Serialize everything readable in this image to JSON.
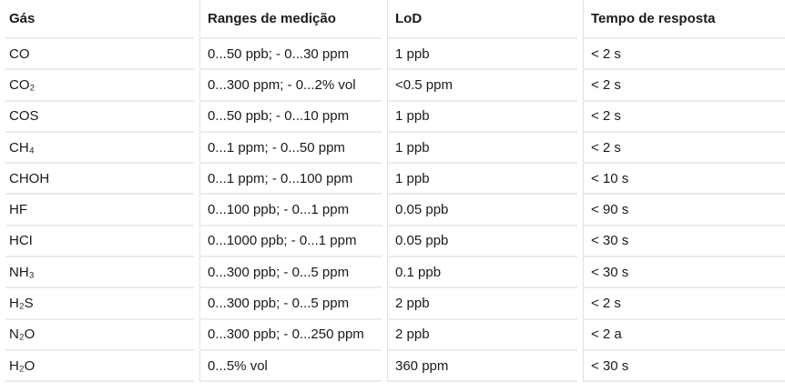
{
  "chart_data": {
    "type": "table",
    "columns": [
      "Gás",
      "Ranges de medição",
      "LoD",
      "Tempo de resposta"
    ],
    "rows": [
      [
        "CO",
        "0...50 ppb; - 0...30 ppm",
        "1 ppb",
        "< 2 s"
      ],
      [
        "CO₂",
        "0...300 ppm; - 0...2% vol",
        "<0.5 ppm",
        "< 2 s"
      ],
      [
        "COS",
        "0...50 ppb; - 0...10 ppm",
        "1 ppb",
        "< 2 s"
      ],
      [
        "CH₄",
        "0...1 ppm; - 0...50 ppm",
        "1 ppb",
        "< 2 s"
      ],
      [
        "CHOH",
        "0...1 ppm; - 0...100 ppm",
        "1 ppb",
        "< 10 s"
      ],
      [
        "HF",
        "0...100 ppb; - 0...1 ppm",
        "0.05 ppb",
        "< 90 s"
      ],
      [
        "HCI",
        "0...1000 ppb; - 0...1 ppm",
        "0.05 ppb",
        "< 30 s"
      ],
      [
        "NH₃",
        "0...300 ppb; - 0...5 ppm",
        "0.1 ppb",
        "< 30 s"
      ],
      [
        "H₂S",
        "0...300 ppb; - 0...5 ppm",
        "2 ppb",
        "< 2 s"
      ],
      [
        "N₂O",
        "0...300 ppb; - 0...250 ppm",
        "2 ppb",
        "< 2 a"
      ],
      [
        "H₂O",
        "0...5% vol",
        "360 ppm",
        "< 30 s"
      ]
    ],
    "title": "",
    "legend": "none",
    "grid": "row-separators"
  },
  "colors": {
    "background": "#ffffff",
    "text": "#1a1a1a",
    "row_border": "#ececec",
    "column_border": "#e2e2e2"
  }
}
